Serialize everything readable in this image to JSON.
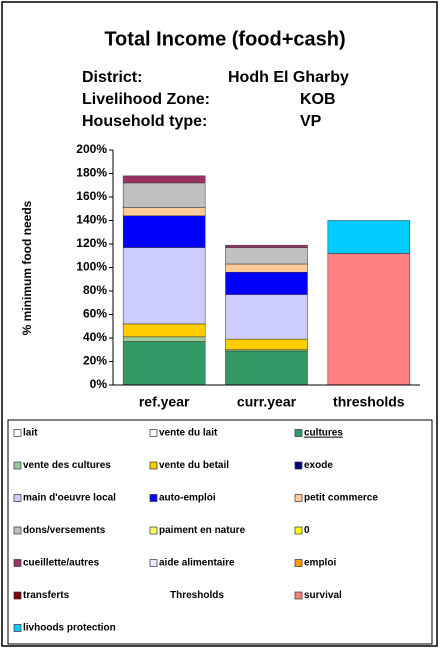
{
  "chart_data": {
    "type": "stacked_bar",
    "title": "Total Income (food+cash)",
    "info": [
      [
        "District:",
        "Hodh El Gharby"
      ],
      [
        "Livelihood Zone:",
        "KOB"
      ],
      [
        "Household type:",
        "VP"
      ]
    ],
    "y_label": "% minimum food needs",
    "categories": [
      "ref.year",
      "curr.year",
      "thresholds"
    ],
    "ylim": [
      0,
      200
    ],
    "yticks": [
      {
        "value": 0,
        "label": "0%"
      },
      {
        "value": 20,
        "label": "20%"
      },
      {
        "value": 40,
        "label": "40%"
      },
      {
        "value": 60,
        "label": "60%"
      },
      {
        "value": 80,
        "label": "80%"
      },
      {
        "value": 100,
        "label": "100%"
      },
      {
        "value": 120,
        "label": "120%"
      },
      {
        "value": 140,
        "label": "140%"
      },
      {
        "value": 160,
        "label": "160%"
      },
      {
        "value": 180,
        "label": "180%"
      },
      {
        "value": 200,
        "label": "200%"
      }
    ],
    "series": [
      {
        "name": "lait",
        "color": "#ffffff",
        "values": [
          0,
          0,
          0
        ]
      },
      {
        "name": "vente du lait",
        "color": "#ffffff",
        "values": [
          0,
          0,
          0
        ]
      },
      {
        "name": "cultures",
        "color": "#339966",
        "values": [
          37,
          29,
          0
        ]
      },
      {
        "name": "vente des cultures",
        "color": "#99cc99",
        "values": [
          4,
          1,
          0
        ]
      },
      {
        "name": "vente du betail",
        "color": "#ffcc00",
        "values": [
          11,
          9,
          0
        ]
      },
      {
        "name": "exode",
        "color": "#000080",
        "values": [
          0,
          0,
          0
        ]
      },
      {
        "name": "main d'oeuvre local",
        "color": "#ccccff",
        "values": [
          65,
          38,
          0
        ]
      },
      {
        "name": "auto-emploi",
        "color": "#0000ff",
        "values": [
          27,
          19,
          0
        ]
      },
      {
        "name": "petit commerce",
        "color": "#ffcc99",
        "values": [
          7,
          7,
          0
        ]
      },
      {
        "name": "dons/versements",
        "color": "#c0c0c0",
        "values": [
          21,
          14,
          0
        ]
      },
      {
        "name": "paiment en nature",
        "color": "#ffff66",
        "values": [
          0,
          0,
          0
        ]
      },
      {
        "name": "0",
        "color": "#ffff00",
        "values": [
          0,
          0,
          0
        ]
      },
      {
        "name": "cueillette/autres",
        "color": "#993366",
        "values": [
          6,
          2,
          0
        ]
      },
      {
        "name": "aide alimentaire",
        "color": "#e8e8ff",
        "values": [
          0,
          0,
          0
        ]
      },
      {
        "name": "emploi",
        "color": "#ff9900",
        "values": [
          0,
          0,
          0
        ]
      },
      {
        "name": "transferts",
        "color": "#800000",
        "values": [
          0,
          0,
          0
        ]
      },
      {
        "name": "Thresholds"
      },
      {
        "name": "survival",
        "color": "#ff8080",
        "values": [
          0,
          0,
          112
        ]
      },
      {
        "name": "livhoods protection",
        "color": "#00ccff",
        "values": [
          0,
          0,
          28
        ]
      }
    ]
  }
}
